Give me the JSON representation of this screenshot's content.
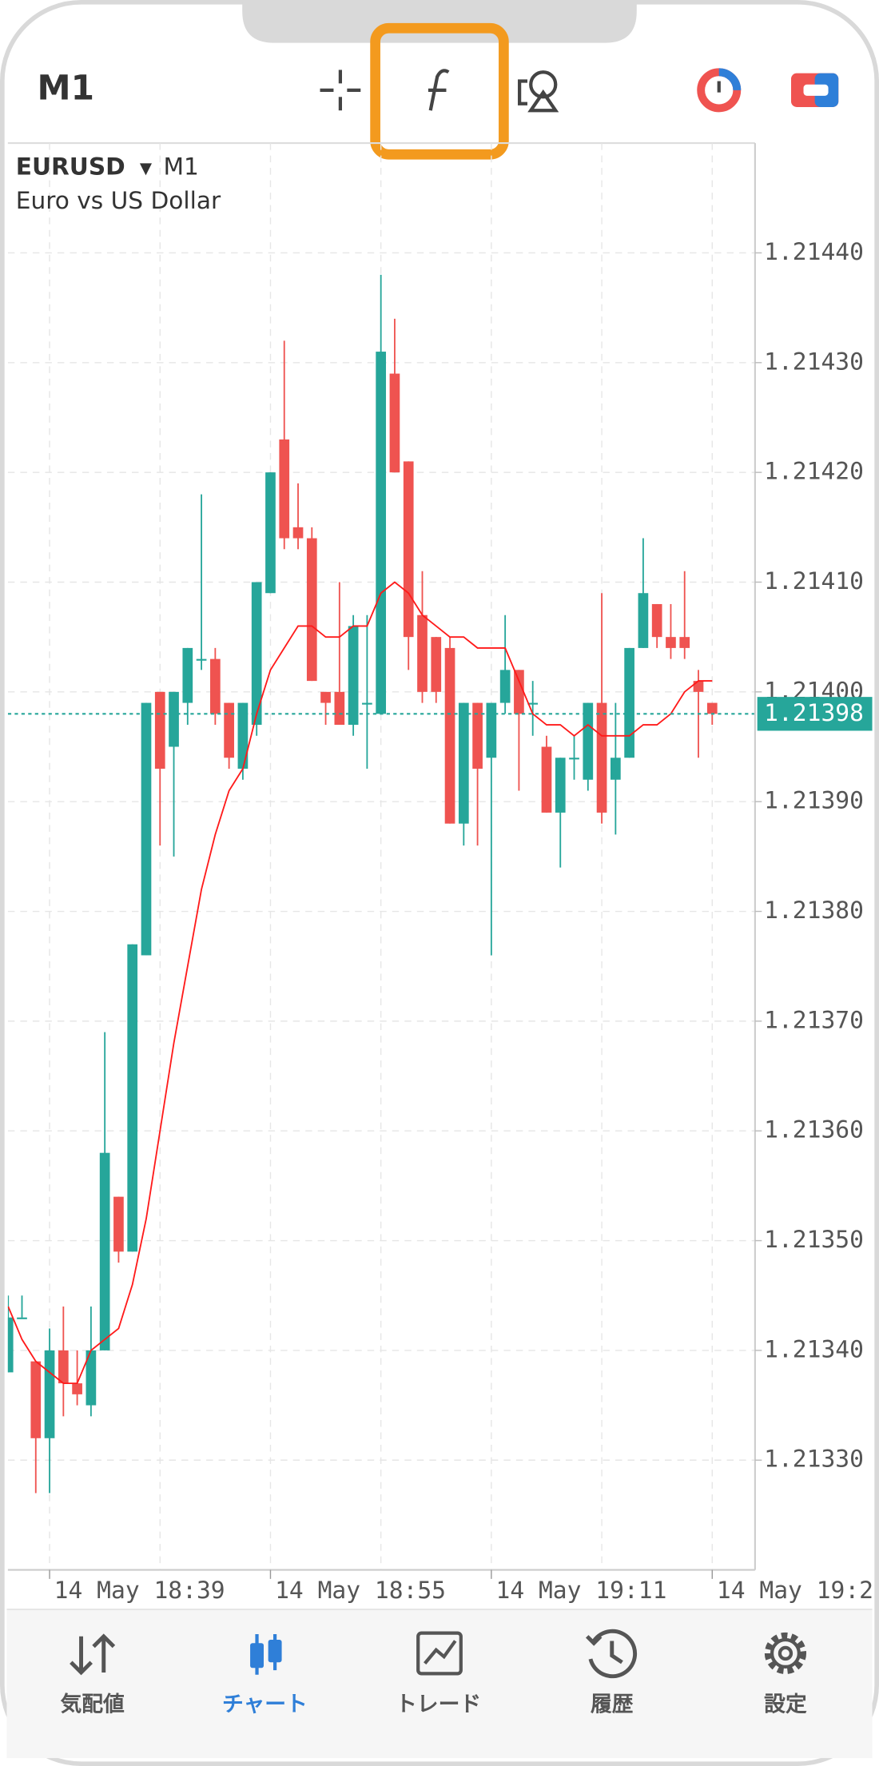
{
  "toolbar": {
    "timeframe": "M1"
  },
  "chart_data": {
    "type": "candlestick",
    "symbol": "EURUSD",
    "timeframe": "M1",
    "description": "Euro vs US Dollar",
    "categories": [
      null,
      null,
      null,
      "14 May 18:39",
      null,
      null,
      null,
      null,
      null,
      null,
      null,
      null,
      null,
      null,
      null,
      null,
      null,
      null,
      null,
      "14 May 18:55",
      null,
      null,
      null,
      null,
      null,
      null,
      null,
      null,
      null,
      null,
      null,
      null,
      null,
      null,
      null,
      "14 May 19:11",
      null,
      null,
      null,
      null,
      null,
      null,
      null,
      null,
      null,
      null,
      null,
      null,
      null,
      null,
      null,
      "14 May 19:2"
    ],
    "open": [
      1.21338,
      1.21343,
      1.21339,
      1.21332,
      1.2134,
      1.21337,
      1.21335,
      1.2134,
      1.21354,
      1.21349,
      1.21376,
      1.214,
      1.21395,
      1.21399,
      1.21403,
      1.21403,
      1.21399,
      1.21393,
      1.21397,
      1.21409,
      1.21423,
      1.21415,
      1.21414,
      1.214,
      1.214,
      1.21397,
      1.21399,
      1.21398,
      1.21429,
      1.21421,
      1.21407,
      1.21405,
      1.21404,
      1.21388,
      1.21399,
      1.21394,
      1.21399,
      1.21402,
      1.21399,
      1.21395,
      1.21389,
      1.21394,
      1.21392,
      1.21399,
      1.21392,
      1.21394,
      1.21404,
      1.21408,
      1.21405,
      1.21405,
      1.21401,
      1.21399
    ],
    "high": [
      1.21345,
      1.21345,
      1.21339,
      1.21342,
      1.21344,
      1.2134,
      1.21344,
      1.21369,
      1.21354,
      1.21377,
      1.21399,
      1.214,
      1.214,
      1.21404,
      1.21418,
      1.21404,
      1.21399,
      1.21399,
      1.2141,
      1.2142,
      1.21432,
      1.21419,
      1.21415,
      1.214,
      1.2141,
      1.21407,
      1.21407,
      1.21438,
      1.21434,
      1.21421,
      1.21411,
      1.21405,
      1.21405,
      1.21399,
      1.21399,
      1.21399,
      1.21407,
      1.21402,
      1.21401,
      1.21396,
      1.21394,
      1.21396,
      1.21399,
      1.21409,
      1.21399,
      1.21404,
      1.21414,
      1.21408,
      1.21408,
      1.21411,
      1.21402,
      1.21399
    ],
    "low": [
      1.21338,
      1.21343,
      1.21327,
      1.21327,
      1.21334,
      1.21335,
      1.21334,
      1.2134,
      1.21348,
      1.21349,
      1.21376,
      1.21386,
      1.21385,
      1.21397,
      1.21402,
      1.21397,
      1.21393,
      1.21392,
      1.21396,
      1.21409,
      1.21413,
      1.21413,
      1.21401,
      1.21397,
      1.21397,
      1.21396,
      1.21393,
      1.21398,
      1.2142,
      1.21402,
      1.21399,
      1.21399,
      1.21388,
      1.21386,
      1.21386,
      1.21376,
      1.21398,
      1.21391,
      1.21396,
      1.21389,
      1.21384,
      1.21392,
      1.21391,
      1.21388,
      1.21387,
      1.21394,
      1.21404,
      1.21404,
      1.21403,
      1.21403,
      1.21394,
      1.21397
    ],
    "close": [
      1.21343,
      1.21343,
      1.21332,
      1.2134,
      1.21337,
      1.21336,
      1.2134,
      1.21358,
      1.21349,
      1.21377,
      1.21399,
      1.21393,
      1.214,
      1.21404,
      1.21403,
      1.21398,
      1.21394,
      1.21399,
      1.2141,
      1.2142,
      1.21414,
      1.21414,
      1.21401,
      1.21399,
      1.21397,
      1.21406,
      1.21399,
      1.21431,
      1.2142,
      1.21405,
      1.214,
      1.214,
      1.21388,
      1.21399,
      1.21393,
      1.21399,
      1.21402,
      1.21398,
      1.21399,
      1.21389,
      1.21394,
      1.21394,
      1.21399,
      1.21389,
      1.21394,
      1.21404,
      1.21409,
      1.21405,
      1.21404,
      1.21404,
      1.214,
      1.21398
    ],
    "up_color": "#26a69a",
    "down_color": "#ef5350",
    "lines": [
      {
        "color": "#ff1a1a",
        "values": [
          1.21344,
          1.21341,
          1.21339,
          1.21338,
          1.21337,
          1.21337,
          1.2134,
          1.21341,
          1.21342,
          1.21346,
          1.21352,
          1.2136,
          1.21368,
          1.21375,
          1.21382,
          1.21387,
          1.21391,
          1.21393,
          1.21398,
          1.21402,
          1.21404,
          1.21406,
          1.21406,
          1.21405,
          1.21405,
          1.21406,
          1.21406,
          1.21409,
          1.2141,
          1.21409,
          1.21407,
          1.21406,
          1.21405,
          1.21405,
          1.21404,
          1.21404,
          1.21404,
          1.21401,
          1.21398,
          1.21397,
          1.21397,
          1.21396,
          1.21397,
          1.21396,
          1.21396,
          1.21396,
          1.21397,
          1.21397,
          1.21398,
          1.214,
          1.21401,
          1.21401
        ]
      }
    ],
    "current_price": 1.21398,
    "ylim": [
      1.2132,
      1.2145
    ],
    "yticks": [
      {
        "value": 1.2133,
        "label": "1.21330"
      },
      {
        "value": 1.2134,
        "label": "1.21340"
      },
      {
        "value": 1.2135,
        "label": "1.21350"
      },
      {
        "value": 1.2136,
        "label": "1.21360"
      },
      {
        "value": 1.2137,
        "label": "1.21370"
      },
      {
        "value": 1.2138,
        "label": "1.21380"
      },
      {
        "value": 1.2139,
        "label": "1.21390"
      },
      {
        "value": 1.214,
        "label": "1.21400"
      },
      {
        "value": 1.2141,
        "label": "1.21410"
      },
      {
        "value": 1.2142,
        "label": "1.21420"
      },
      {
        "value": 1.2143,
        "label": "1.21430"
      },
      {
        "value": 1.2144,
        "label": "1.21440"
      }
    ],
    "grid": true
  },
  "tab_bar": {
    "tabs": [
      "気配値",
      "チャート",
      "トレード",
      "履歴",
      "設定"
    ],
    "selected": 1
  }
}
